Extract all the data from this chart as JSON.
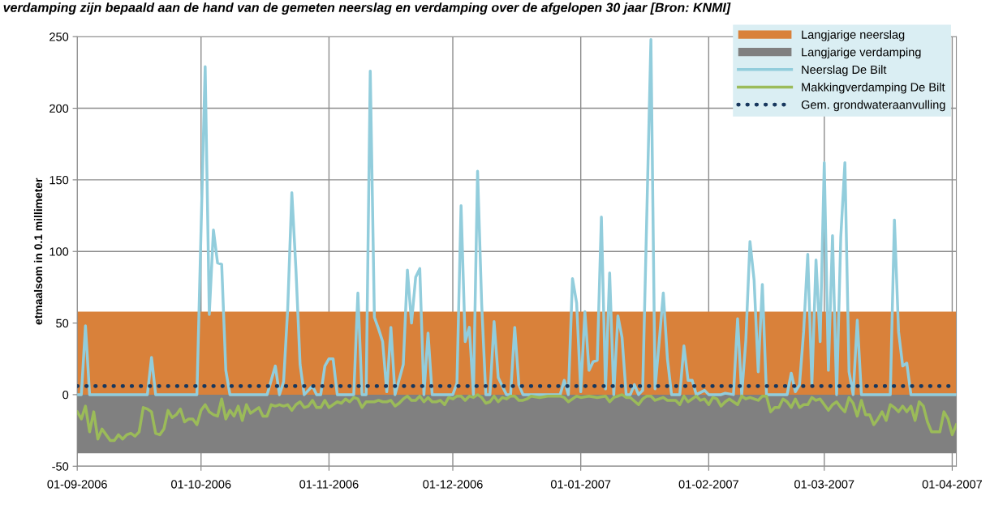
{
  "chart_data": {
    "type": "line",
    "title": "verdamping zijn bepaald aan de hand van de gemeten neerslag en verdamping over de afgelopen 30 jaar [Bron: KNMI]",
    "ylabel": "etmaalsom in 0.1 millimeter",
    "xlim": [
      "2006-09-01",
      "2007-04-02"
    ],
    "xticks": [
      {
        "value": "2006-09-01",
        "label": "01-09-2006"
      },
      {
        "value": "2006-10-01",
        "label": "01-10-2006"
      },
      {
        "value": "2006-11-01",
        "label": "01-11-2006"
      },
      {
        "value": "2006-12-01",
        "label": "01-12-2006"
      },
      {
        "value": "2007-01-01",
        "label": "01-01-2007"
      },
      {
        "value": "2007-02-01",
        "label": "01-02-2007"
      },
      {
        "value": "2007-03-01",
        "label": "01-03-2007"
      },
      {
        "value": "2007-04-01",
        "label": "01-04-2007"
      }
    ],
    "ylim": [
      -50,
      250
    ],
    "yticks": [
      -50,
      0,
      50,
      100,
      150,
      200,
      250
    ],
    "grid": true,
    "legend": "top right",
    "series": [
      {
        "name": "Langjarige neerslag",
        "type": "area",
        "color": "#d9813a",
        "x": [
          "2006-09-01",
          "2007-04-02"
        ],
        "values": [
          58,
          58
        ]
      },
      {
        "name": "Langjarige verdamping",
        "type": "area",
        "color": "#808080",
        "x": [
          "2006-09-01",
          "2007-04-02"
        ],
        "values": [
          -41,
          -41
        ]
      },
      {
        "name": "Neerslag De Bilt",
        "color": "#92cddc",
        "line_style": "solid",
        "x": [
          "2006-09-01",
          "2006-09-02",
          "2006-09-03",
          "2006-09-04",
          "2006-09-18",
          "2006-09-19",
          "2006-09-20",
          "2006-09-30",
          "2006-10-02",
          "2006-10-03",
          "2006-10-04",
          "2006-10-05",
          "2006-10-06",
          "2006-10-07",
          "2006-10-08",
          "2006-10-17",
          "2006-10-19",
          "2006-10-20",
          "2006-10-21",
          "2006-10-22",
          "2006-10-23",
          "2006-10-24",
          "2006-10-25",
          "2006-10-26",
          "2006-10-28",
          "2006-10-29",
          "2006-10-30",
          "2006-10-31",
          "2006-11-01",
          "2006-11-02",
          "2006-11-03",
          "2006-11-07",
          "2006-11-08",
          "2006-11-09",
          "2006-11-10",
          "2006-11-11",
          "2006-11-12",
          "2006-11-13",
          "2006-11-14",
          "2006-11-15",
          "2006-11-16",
          "2006-11-17",
          "2006-11-19",
          "2006-11-20",
          "2006-11-21",
          "2006-11-22",
          "2006-11-23",
          "2006-11-24",
          "2006-11-25",
          "2006-11-26",
          "2006-12-01",
          "2006-12-02",
          "2006-12-03",
          "2006-12-04",
          "2006-12-05",
          "2006-12-06",
          "2006-12-07",
          "2006-12-08",
          "2006-12-09",
          "2006-12-10",
          "2006-12-11",
          "2006-12-12",
          "2006-12-14",
          "2006-12-15",
          "2006-12-16",
          "2006-12-17",
          "2006-12-18",
          "2006-12-27",
          "2006-12-28",
          "2006-12-29",
          "2006-12-30",
          "2006-12-31",
          "2007-01-01",
          "2007-01-02",
          "2007-01-03",
          "2007-01-04",
          "2007-01-05",
          "2007-01-06",
          "2007-01-07",
          "2007-01-08",
          "2007-01-09",
          "2007-01-10",
          "2007-01-11",
          "2007-01-12",
          "2007-01-13",
          "2007-01-14",
          "2007-01-15",
          "2007-01-16",
          "2007-01-17",
          "2007-01-18",
          "2007-01-19",
          "2007-01-20",
          "2007-01-21",
          "2007-01-22",
          "2007-01-23",
          "2007-01-25",
          "2007-01-26",
          "2007-01-27",
          "2007-01-28",
          "2007-01-29",
          "2007-01-31",
          "2007-02-01",
          "2007-02-04",
          "2007-02-05",
          "2007-02-07",
          "2007-02-08",
          "2007-02-09",
          "2007-02-10",
          "2007-02-11",
          "2007-02-12",
          "2007-02-13",
          "2007-02-14",
          "2007-02-15",
          "2007-02-20",
          "2007-02-21",
          "2007-02-22",
          "2007-02-23",
          "2007-02-24",
          "2007-02-25",
          "2007-02-26",
          "2007-02-27",
          "2007-02-28",
          "2007-03-01",
          "2007-03-02",
          "2007-03-03",
          "2007-03-04",
          "2007-03-05",
          "2007-03-06",
          "2007-03-07",
          "2007-03-08",
          "2007-03-09",
          "2007-03-10",
          "2007-03-16",
          "2007-03-17",
          "2007-03-18",
          "2007-03-19",
          "2007-03-20",
          "2007-03-21",
          "2007-03-22",
          "2007-04-02"
        ],
        "values": [
          0,
          0,
          48,
          0,
          0,
          26,
          0,
          0,
          229,
          56,
          115,
          92,
          91,
          17,
          0,
          0,
          20,
          0,
          9,
          60,
          141,
          87,
          21,
          0,
          6,
          0,
          0,
          20,
          25,
          25,
          0,
          0,
          71,
          0,
          0,
          226,
          54,
          46,
          37,
          2,
          47,
          0,
          21,
          87,
          50,
          82,
          88,
          0,
          43,
          0,
          0,
          8,
          132,
          37,
          47,
          0,
          156,
          63,
          0,
          0,
          51,
          12,
          0,
          0,
          47,
          7,
          0,
          0,
          10,
          0,
          81,
          64,
          2,
          58,
          17,
          23,
          24,
          124,
          4,
          85,
          0,
          55,
          40,
          0,
          0,
          7,
          0,
          3,
          125,
          248,
          4,
          37,
          71,
          25,
          0,
          0,
          34,
          10,
          10,
          0,
          3,
          0,
          0,
          1,
          0,
          53,
          0,
          38,
          107,
          80,
          16,
          77,
          0,
          0,
          15,
          2,
          7,
          44,
          98,
          7,
          94,
          37,
          162,
          17,
          111,
          0,
          110,
          162,
          16,
          0,
          52,
          0,
          0,
          0,
          122,
          44,
          20,
          22,
          0,
          0
        ]
      },
      {
        "name": "Makkingverdamping De Bilt",
        "color": "#9bbb59",
        "line_style": "solid",
        "x": [
          "2006-09-01",
          "2006-09-02",
          "2006-09-03",
          "2006-09-04",
          "2006-09-05",
          "2006-09-06",
          "2006-09-07",
          "2006-09-08",
          "2006-09-09",
          "2006-09-10",
          "2006-09-11",
          "2006-09-12",
          "2006-09-13",
          "2006-09-14",
          "2006-09-15",
          "2006-09-16",
          "2006-09-17",
          "2006-09-18",
          "2006-09-19",
          "2006-09-20",
          "2006-09-21",
          "2006-09-22",
          "2006-09-23",
          "2006-09-24",
          "2006-09-25",
          "2006-09-26",
          "2006-09-27",
          "2006-09-28",
          "2006-09-29",
          "2006-09-30",
          "2006-10-01",
          "2006-10-02",
          "2006-10-03",
          "2006-10-04",
          "2006-10-05",
          "2006-10-06",
          "2006-10-07",
          "2006-10-08",
          "2006-10-09",
          "2006-10-10",
          "2006-10-11",
          "2006-10-12",
          "2006-10-13",
          "2006-10-14",
          "2006-10-15",
          "2006-10-16",
          "2006-10-17",
          "2006-10-18",
          "2006-10-19",
          "2006-10-20",
          "2006-10-21",
          "2006-10-22",
          "2006-10-23",
          "2006-10-24",
          "2006-10-25",
          "2006-10-26",
          "2006-10-27",
          "2006-10-28",
          "2006-10-29",
          "2006-10-30",
          "2006-10-31",
          "2006-11-01",
          "2006-11-02",
          "2006-11-03",
          "2006-11-04",
          "2006-11-05",
          "2006-11-06",
          "2006-11-07",
          "2006-11-08",
          "2006-11-09",
          "2006-11-10",
          "2006-11-11",
          "2006-11-12",
          "2006-11-13",
          "2006-11-14",
          "2006-11-15",
          "2006-11-16",
          "2006-11-17",
          "2006-11-18",
          "2006-11-19",
          "2006-11-20",
          "2006-11-21",
          "2006-11-22",
          "2006-11-23",
          "2006-11-24",
          "2006-11-25",
          "2006-11-26",
          "2006-11-27",
          "2006-11-28",
          "2006-11-29",
          "2006-11-30",
          "2006-12-01",
          "2006-12-02",
          "2006-12-03",
          "2006-12-04",
          "2006-12-05",
          "2006-12-06",
          "2006-12-07",
          "2006-12-08",
          "2006-12-09",
          "2006-12-10",
          "2006-12-11",
          "2006-12-12",
          "2006-12-13",
          "2006-12-14",
          "2006-12-15",
          "2006-12-16",
          "2006-12-17",
          "2006-12-18",
          "2006-12-19",
          "2006-12-20",
          "2006-12-22",
          "2006-12-24",
          "2006-12-27",
          "2006-12-28",
          "2006-12-29",
          "2006-12-31",
          "2007-01-01",
          "2007-01-03",
          "2007-01-05",
          "2007-01-07",
          "2007-01-08",
          "2007-01-09",
          "2007-01-11",
          "2007-01-12",
          "2007-01-13",
          "2007-01-15",
          "2007-01-16",
          "2007-01-17",
          "2007-01-18",
          "2007-01-19",
          "2007-01-21",
          "2007-01-22",
          "2007-01-24",
          "2007-01-25",
          "2007-01-26",
          "2007-01-27",
          "2007-01-29",
          "2007-01-30",
          "2007-01-31",
          "2007-02-01",
          "2007-02-02",
          "2007-02-03",
          "2007-02-04",
          "2007-02-05",
          "2007-02-06",
          "2007-02-08",
          "2007-02-09",
          "2007-02-10",
          "2007-02-11",
          "2007-02-12",
          "2007-02-13",
          "2007-02-14",
          "2007-02-15",
          "2007-02-16",
          "2007-02-17",
          "2007-02-18",
          "2007-02-19",
          "2007-02-20",
          "2007-02-21",
          "2007-02-22",
          "2007-02-23",
          "2007-02-24",
          "2007-02-25",
          "2007-02-26",
          "2007-02-27",
          "2007-02-28",
          "2007-03-01",
          "2007-03-02",
          "2007-03-03",
          "2007-03-04",
          "2007-03-05",
          "2007-03-06",
          "2007-03-07",
          "2007-03-08",
          "2007-03-09",
          "2007-03-10",
          "2007-03-11",
          "2007-03-12",
          "2007-03-13",
          "2007-03-14",
          "2007-03-15",
          "2007-03-16",
          "2007-03-17",
          "2007-03-18",
          "2007-03-19",
          "2007-03-20",
          "2007-03-21",
          "2007-03-22",
          "2007-03-23",
          "2007-03-24",
          "2007-03-25",
          "2007-03-26",
          "2007-03-27",
          "2007-03-28",
          "2007-03-29",
          "2007-03-30",
          "2007-03-31",
          "2007-04-01",
          "2007-04-02"
        ],
        "values": [
          -12,
          -17,
          -8,
          -26,
          -12,
          -31,
          -24,
          -28,
          -32,
          -32,
          -28,
          -31,
          -28,
          -27,
          -29,
          -26,
          -9,
          -10,
          -12,
          -27,
          -28,
          -24,
          -11,
          -16,
          -14,
          -10,
          -19,
          -17,
          -17,
          -21,
          -11,
          -7,
          -12,
          -14,
          -15,
          -3,
          -17,
          -11,
          -15,
          -8,
          -18,
          -7,
          -13,
          -11,
          -9,
          -15,
          -15,
          -7,
          -8,
          -7,
          -8,
          -7,
          -11,
          -7,
          -5,
          -9,
          -8,
          -4,
          -9,
          -9,
          -4,
          -9,
          -7,
          -5,
          -6,
          -3,
          -5,
          -2,
          -3,
          -9,
          -5,
          -5,
          -5,
          -4,
          -5,
          -5,
          -4,
          -8,
          -6,
          -3,
          -1,
          -4,
          -4,
          -1,
          -5,
          -2,
          -5,
          -5,
          -4,
          -7,
          -2,
          -3,
          -1,
          -1,
          -4,
          -1,
          -2,
          0,
          -2,
          -6,
          -5,
          -1,
          -5,
          -2,
          -3,
          -1,
          -1,
          -4,
          -4,
          -3,
          -1,
          -2,
          -1,
          -1,
          -2,
          -5,
          -1,
          -2,
          -1,
          -2,
          -1,
          -5,
          -2,
          0,
          -2,
          -2,
          -7,
          -3,
          -1,
          -1,
          -4,
          -2,
          -4,
          -4,
          -7,
          -1,
          -5,
          -1,
          -4,
          -3,
          -7,
          -2,
          -3,
          -8,
          -5,
          -3,
          -7,
          -1,
          -3,
          -2,
          -3,
          -4,
          -1,
          -1,
          -12,
          -9,
          -9,
          -3,
          -5,
          -9,
          -3,
          -9,
          -7,
          -7,
          -2,
          -4,
          -3,
          -7,
          -11,
          -7,
          -5,
          -9,
          -12,
          -2,
          -6,
          -15,
          -4,
          -14,
          -14,
          -21,
          -17,
          -12,
          -18,
          -7,
          -9,
          -12,
          -8,
          -12,
          -8,
          -18,
          -5,
          -8,
          -19,
          -26,
          -26,
          -26,
          -12,
          -17,
          -28,
          -21
        ]
      },
      {
        "name": "Gem. grondwateraanvulling",
        "color": "#17375e",
        "line_style": "dotted",
        "x": [
          "2006-09-01",
          "2007-04-02"
        ],
        "values": [
          6,
          6
        ]
      }
    ]
  }
}
